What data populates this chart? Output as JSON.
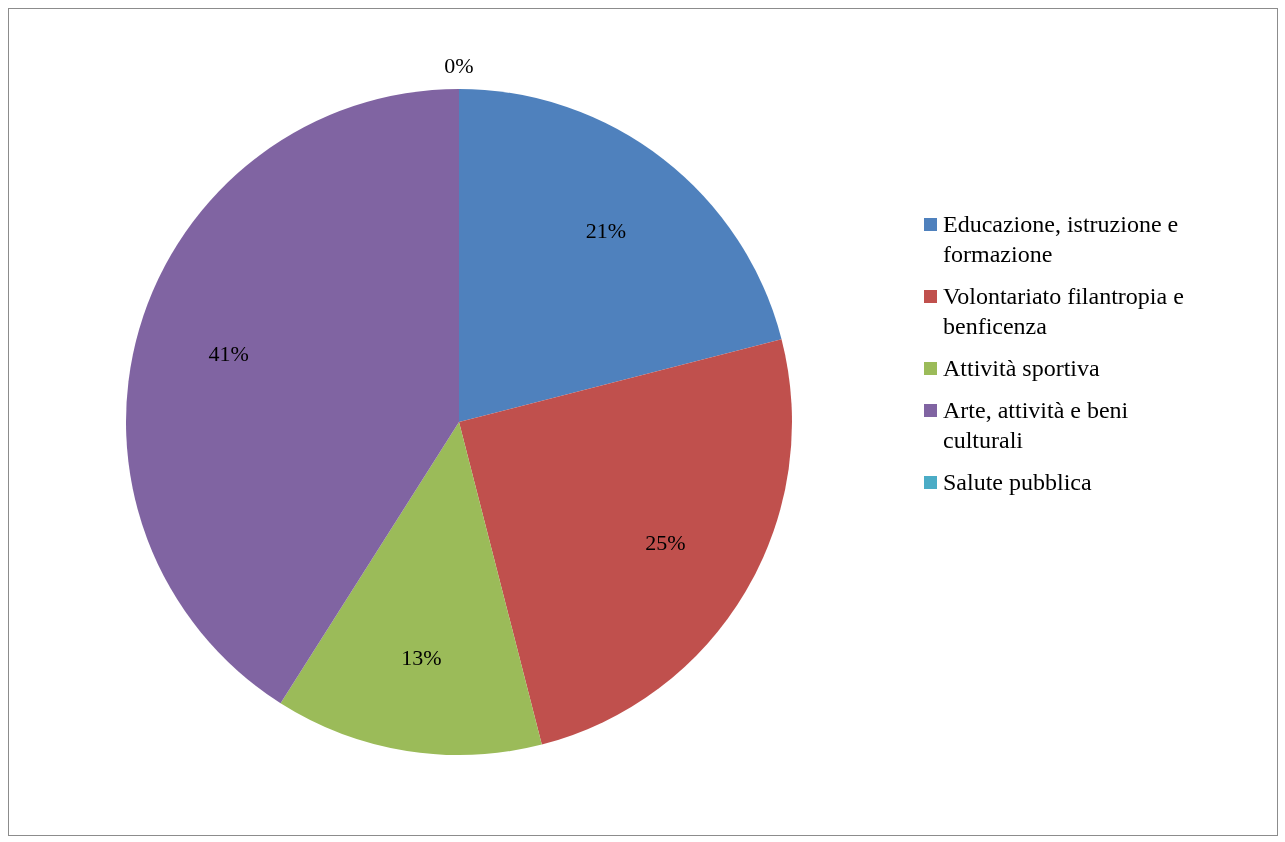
{
  "chart_data": {
    "type": "pie",
    "categories": [
      "Educazione, istruzione e formazione",
      "Volontariato filantropia e benficenza",
      "Attività sportiva",
      "Arte, attività e beni culturali",
      "Salute pubblica"
    ],
    "values": [
      21,
      25,
      13,
      41,
      0
    ],
    "colors": [
      "#4f81bd",
      "#c0504d",
      "#9bbb59",
      "#8064a2",
      "#4bacc6"
    ],
    "value_labels": [
      "21%",
      "25%",
      "13%",
      "41%",
      "0%"
    ],
    "legend": "right"
  }
}
